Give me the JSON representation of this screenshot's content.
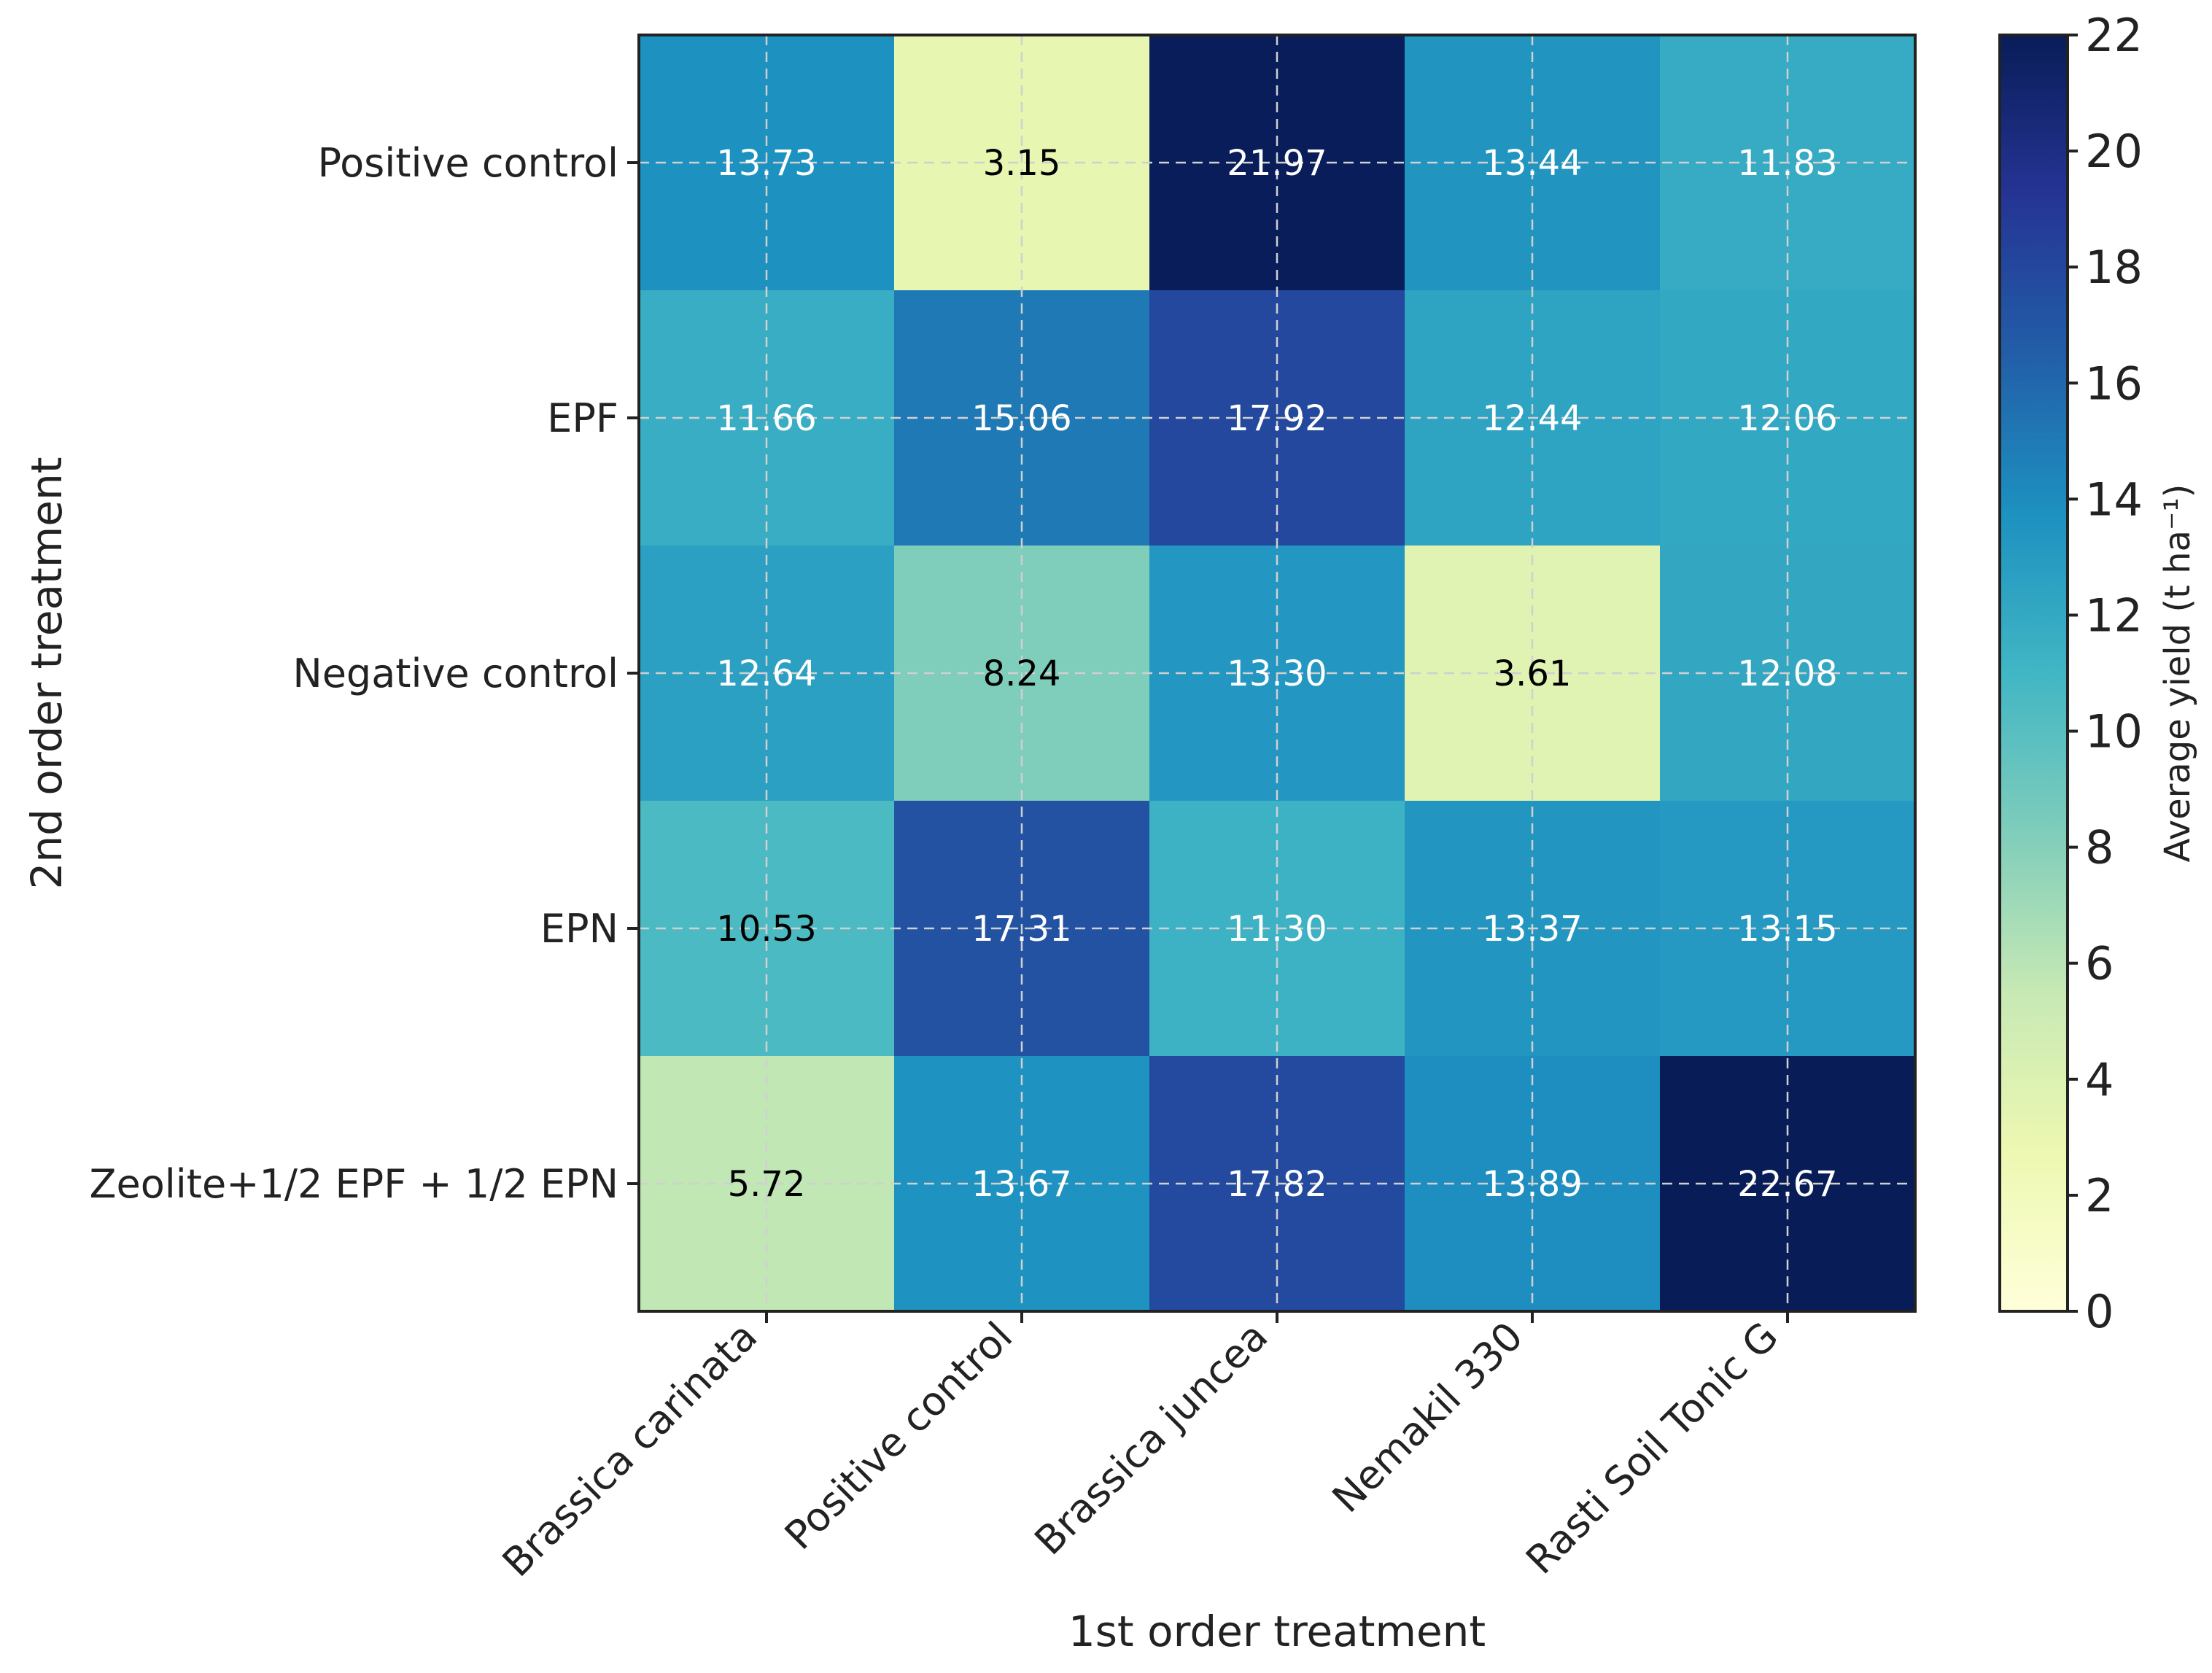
{
  "chart_data": {
    "type": "heatmap",
    "title": "",
    "xlabel": "1st order treatment",
    "ylabel": "2nd order treatment",
    "x_categories": [
      "Brassica carinata",
      "Positive control",
      "Brassica juncea",
      "Nemakil 330",
      "Rasti Soil Tonic G"
    ],
    "y_categories": [
      "Positive control",
      "EPF",
      "Negative control",
      "EPN",
      "Zeolite+1/2 EPF + 1/2 EPN"
    ],
    "values": [
      [
        13.73,
        3.15,
        21.97,
        13.44,
        11.83
      ],
      [
        11.66,
        15.06,
        17.92,
        12.44,
        12.06
      ],
      [
        12.64,
        8.24,
        13.3,
        3.61,
        12.08
      ],
      [
        10.53,
        17.31,
        11.3,
        13.37,
        13.15
      ],
      [
        5.72,
        13.67,
        17.82,
        13.89,
        22.67
      ]
    ],
    "value_labels": [
      [
        "13.73",
        "3.15",
        "21.97",
        "13.44",
        "11.83"
      ],
      [
        "11.66",
        "15.06",
        "17.92",
        "12.44",
        "12.06"
      ],
      [
        "12.64",
        "8.24",
        "13.30",
        "3.61",
        "12.08"
      ],
      [
        "10.53",
        "17.31",
        "11.30",
        "13.37",
        "13.15"
      ],
      [
        "5.72",
        "13.67",
        "17.82",
        "13.89",
        "22.67"
      ]
    ],
    "colorbar": {
      "label": "Average yield (t ha⁻¹)",
      "range": [
        0,
        22
      ],
      "ticks": [
        "0",
        "2",
        "4",
        "6",
        "8",
        "10",
        "12",
        "14",
        "16",
        "18",
        "20",
        "22"
      ],
      "colormap": "YlGnBu"
    },
    "grid": true
  }
}
